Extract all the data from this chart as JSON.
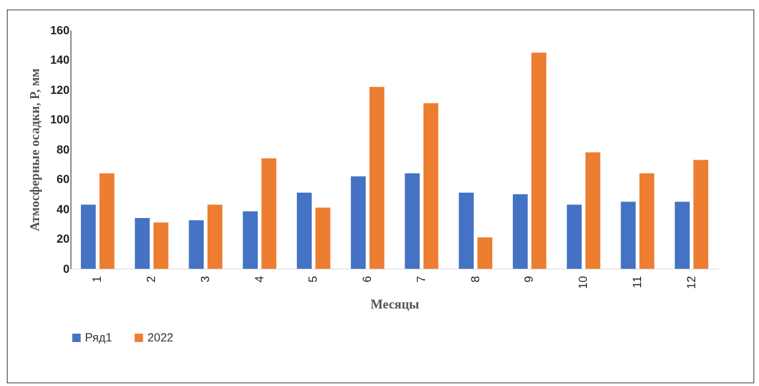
{
  "chart_data": {
    "type": "bar",
    "xlabel": "Месяцы",
    "ylabel": "Атмосферные осадки, P, мм",
    "categories": [
      "1",
      "2",
      "3",
      "4",
      "5",
      "6",
      "7",
      "8",
      "9",
      "10",
      "11",
      "12"
    ],
    "series": [
      {
        "name": "Ряд1",
        "color": "#4472c4",
        "values": [
          43,
          34,
          32.5,
          38.5,
          51,
          62,
          64,
          51,
          50,
          43,
          45,
          45
        ]
      },
      {
        "name": "2022",
        "color": "#ed7d31",
        "values": [
          64,
          31,
          43,
          74,
          41,
          122,
          111,
          21,
          145,
          78,
          64,
          73
        ]
      }
    ],
    "ylim": [
      0,
      160
    ],
    "yticks": [
      0,
      20,
      40,
      60,
      80,
      100,
      120,
      140,
      160
    ],
    "grid": false,
    "legend": "bottom"
  }
}
